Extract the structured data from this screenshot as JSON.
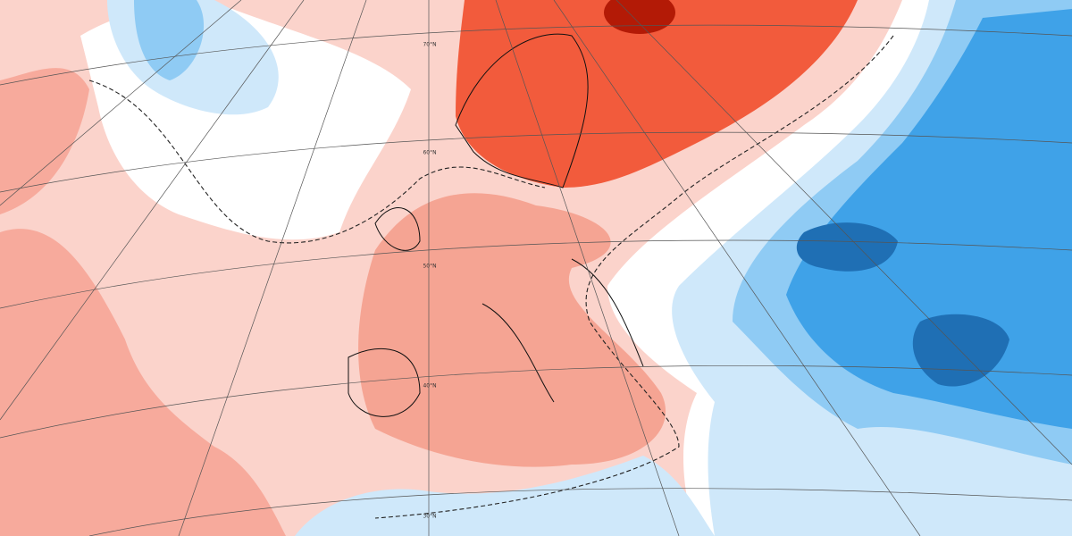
{
  "map": {
    "latitude_labels": [
      "70°N",
      "60°N",
      "50°N",
      "40°N",
      "30°N"
    ]
  }
}
